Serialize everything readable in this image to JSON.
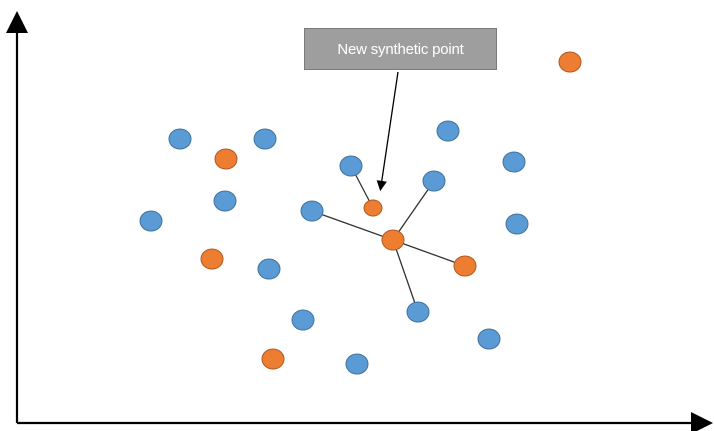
{
  "callout": {
    "label": "New synthetic point"
  },
  "colors": {
    "majority": "#5b9bd5",
    "majority_stroke": "#41719c",
    "minority": "#ed7d31",
    "minority_stroke": "#ae5a21",
    "line": "#333333",
    "axis": "#000000",
    "callout_fill": "#9e9e9e",
    "callout_text": "#ffffff"
  },
  "points": {
    "majority_class": "blue",
    "minority_class": "orange",
    "synthetic_class": "orange-small"
  }
}
